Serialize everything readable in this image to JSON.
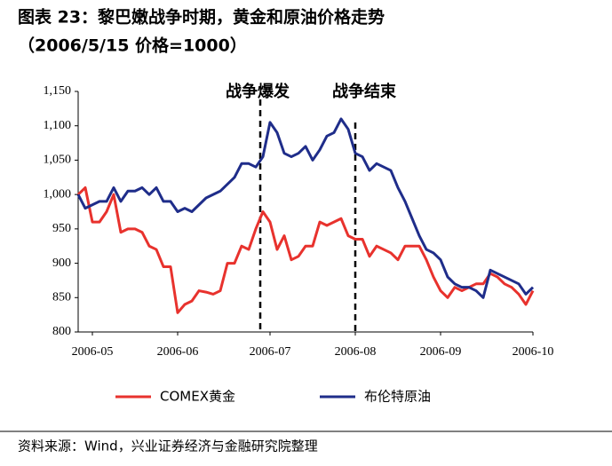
{
  "chart_data": {
    "type": "line",
    "title": "图表 23：黎巴嫩战争时期，黄金和原油价格走势",
    "subtitle": "（2006/5/15 价格=1000）",
    "annotations": [
      "战争爆发",
      "战争结束"
    ],
    "source": "资料来源：Wind，兴业证券经济与金融研究院整理",
    "categories": [
      null,
      null,
      "2006-05",
      null,
      null,
      null,
      null,
      null,
      null,
      null,
      null,
      null,
      null,
      null,
      "2006-06",
      null,
      null,
      null,
      null,
      null,
      null,
      null,
      null,
      null,
      null,
      null,
      null,
      "2006-07",
      null,
      null,
      null,
      null,
      null,
      null,
      null,
      null,
      null,
      null,
      null,
      "2006-08",
      null,
      null,
      null,
      null,
      null,
      null,
      null,
      null,
      null,
      null,
      null,
      "2006-09",
      null,
      null,
      null,
      null,
      null,
      null,
      null,
      null,
      null,
      null,
      null,
      null,
      "2006-10"
    ],
    "series": [
      {
        "name": "COMEX黄金",
        "color": "#e8322d",
        "values": [
          1000,
          1010,
          960,
          960,
          975,
          1000,
          945,
          950,
          950,
          945,
          925,
          920,
          895,
          895,
          828,
          840,
          845,
          860,
          858,
          855,
          860,
          900,
          900,
          925,
          920,
          950,
          975,
          960,
          920,
          940,
          905,
          910,
          925,
          925,
          960,
          955,
          960,
          965,
          940,
          935,
          935,
          910,
          925,
          920,
          915,
          905,
          925,
          925,
          925,
          905,
          880,
          860,
          850,
          865,
          860,
          865,
          870,
          870,
          885,
          880,
          870,
          865,
          855,
          840,
          860
        ]
      },
      {
        "name": "布伦特原油",
        "color": "#1f2d8a",
        "values": [
          1000,
          980,
          985,
          990,
          990,
          1010,
          990,
          1005,
          1005,
          1010,
          1000,
          1010,
          990,
          990,
          975,
          980,
          975,
          985,
          995,
          1000,
          1005,
          1015,
          1025,
          1045,
          1045,
          1040,
          1055,
          1105,
          1090,
          1060,
          1055,
          1060,
          1070,
          1050,
          1065,
          1085,
          1090,
          1110,
          1095,
          1060,
          1055,
          1035,
          1045,
          1040,
          1035,
          1010,
          990,
          965,
          940,
          920,
          915,
          905,
          880,
          870,
          865,
          865,
          860,
          850,
          890,
          885,
          880,
          875,
          870,
          855,
          865
        ]
      }
    ],
    "ylim": [
      800,
      1150
    ],
    "yticks": [
      800,
      850,
      900,
      950,
      {
        "value": 1000,
        "label": "1,000"
      },
      {
        "value": 1050,
        "label": "1,050"
      },
      {
        "value": 1100,
        "label": "1,100"
      },
      {
        "value": 1150,
        "label": "1,150"
      }
    ],
    "grid": false
  }
}
